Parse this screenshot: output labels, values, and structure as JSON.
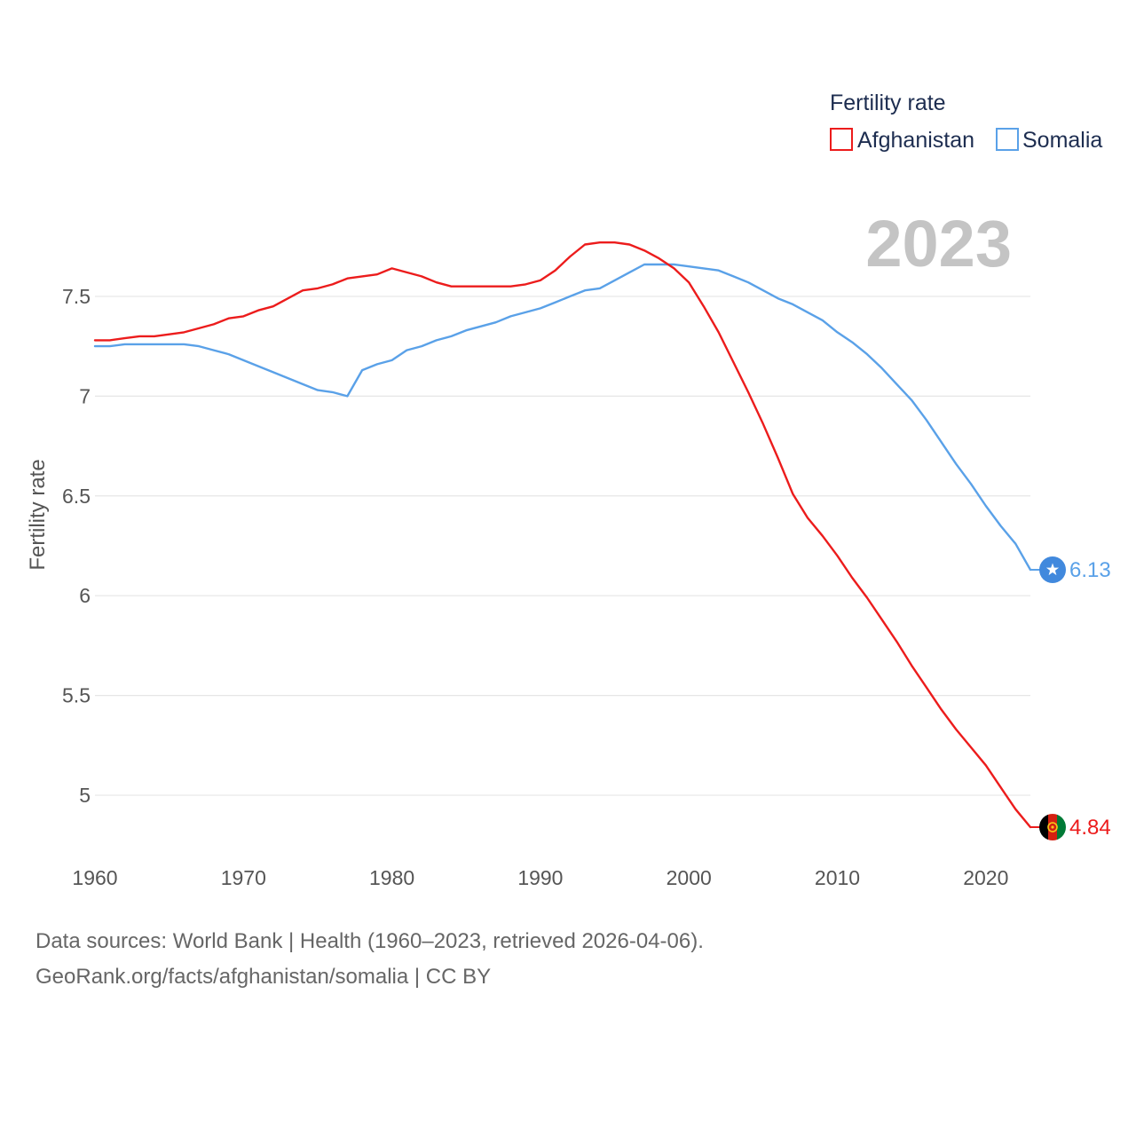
{
  "chart_data": {
    "type": "line",
    "title": "",
    "xlabel": "",
    "ylabel": "Fertility rate",
    "xlim": [
      1960,
      2023
    ],
    "ylim": [
      4.6,
      7.98
    ],
    "x_ticks": [
      "1960",
      "1970",
      "1980",
      "1990",
      "2000",
      "2010",
      "2020"
    ],
    "y_ticks": [
      "5",
      "5.5",
      "6",
      "6.5",
      "7",
      "7.5"
    ],
    "grid": true,
    "year_label": "2023",
    "legend": {
      "title": "Fertility rate",
      "position": "top-right"
    },
    "x": [
      1960,
      1961,
      1962,
      1963,
      1964,
      1965,
      1966,
      1967,
      1968,
      1969,
      1970,
      1971,
      1972,
      1973,
      1974,
      1975,
      1976,
      1977,
      1978,
      1979,
      1980,
      1981,
      1982,
      1983,
      1984,
      1985,
      1986,
      1987,
      1988,
      1989,
      1990,
      1991,
      1992,
      1993,
      1994,
      1995,
      1996,
      1997,
      1998,
      1999,
      2000,
      2001,
      2002,
      2003,
      2004,
      2005,
      2006,
      2007,
      2008,
      2009,
      2010,
      2011,
      2012,
      2013,
      2014,
      2015,
      2016,
      2017,
      2018,
      2019,
      2020,
      2021,
      2022,
      2023
    ],
    "series": [
      {
        "name": "Afghanistan",
        "color": "#ec1c1c",
        "end_value": "4.84",
        "values": [
          7.28,
          7.28,
          7.29,
          7.3,
          7.3,
          7.31,
          7.32,
          7.34,
          7.36,
          7.39,
          7.4,
          7.43,
          7.45,
          7.49,
          7.53,
          7.54,
          7.56,
          7.59,
          7.6,
          7.61,
          7.64,
          7.62,
          7.6,
          7.57,
          7.55,
          7.55,
          7.55,
          7.55,
          7.55,
          7.56,
          7.58,
          7.63,
          7.7,
          7.76,
          7.77,
          7.77,
          7.76,
          7.73,
          7.69,
          7.64,
          7.57,
          7.45,
          7.32,
          7.17,
          7.02,
          6.86,
          6.69,
          6.51,
          6.39,
          6.3,
          6.2,
          6.09,
          5.99,
          5.88,
          5.77,
          5.65,
          5.54,
          5.43,
          5.33,
          5.24,
          5.15,
          5.04,
          4.93,
          4.84
        ]
      },
      {
        "name": "Somalia",
        "color": "#5aa1e8",
        "end_value": "6.13",
        "values": [
          7.25,
          7.25,
          7.26,
          7.26,
          7.26,
          7.26,
          7.26,
          7.25,
          7.23,
          7.21,
          7.18,
          7.15,
          7.12,
          7.09,
          7.06,
          7.03,
          7.02,
          7.0,
          7.13,
          7.16,
          7.18,
          7.23,
          7.25,
          7.28,
          7.3,
          7.33,
          7.35,
          7.37,
          7.4,
          7.42,
          7.44,
          7.47,
          7.5,
          7.53,
          7.54,
          7.58,
          7.62,
          7.66,
          7.66,
          7.66,
          7.65,
          7.64,
          7.63,
          7.6,
          7.57,
          7.53,
          7.49,
          7.46,
          7.42,
          7.38,
          7.32,
          7.27,
          7.21,
          7.14,
          7.06,
          6.98,
          6.88,
          6.77,
          6.66,
          6.56,
          6.45,
          6.35,
          6.26,
          6.13
        ]
      }
    ]
  },
  "footer": {
    "line1": "Data sources: World Bank | Health (1960–2023, retrieved 2026-04-06).",
    "line2": "GeoRank.org/facts/afghanistan/somalia | CC BY"
  },
  "icons": {
    "afghanistan": "afghanistan-flag-icon",
    "somalia": "somalia-flag-icon"
  }
}
